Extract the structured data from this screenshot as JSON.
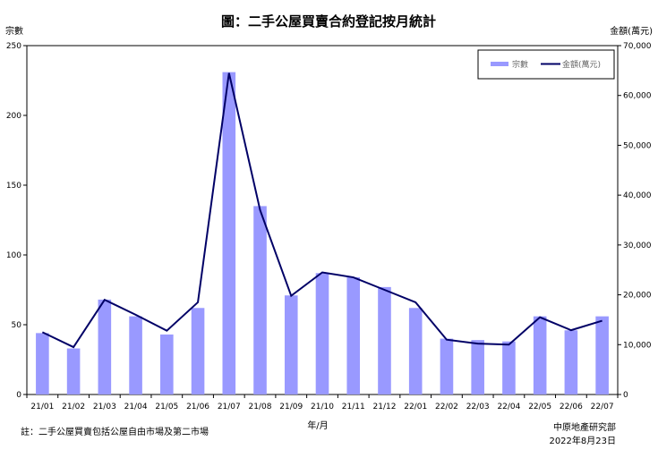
{
  "chart_data": {
    "type": "bar",
    "title": "圖：二手公屋買賣合約登記按月統計",
    "xlabel": "年/月",
    "ylabel": "宗數",
    "y2label": "金額(萬元)",
    "ylim": [
      0,
      250
    ],
    "y2lim": [
      0,
      70000
    ],
    "yticks": [
      "0",
      "50",
      "100",
      "150",
      "200",
      "250"
    ],
    "y2ticks": [
      "0",
      "10,000",
      "20,000",
      "30,000",
      "40,000",
      "50,000",
      "60,000",
      "70,000"
    ],
    "grid": false,
    "legend_position": "top-right",
    "categories": [
      "21/01",
      "21/02",
      "21/03",
      "21/04",
      "21/05",
      "21/06",
      "21/07",
      "21/08",
      "21/09",
      "21/10",
      "21/11",
      "21/12",
      "22/01",
      "22/02",
      "22/03",
      "22/04",
      "22/05",
      "22/06",
      "22/07"
    ],
    "series": [
      {
        "name": "宗數",
        "type": "bar",
        "axis": "left",
        "color": "#9999ff",
        "values": [
          44,
          33,
          68,
          56,
          43,
          62,
          231,
          135,
          71,
          87,
          84,
          77,
          62,
          40,
          39,
          38,
          56,
          46,
          56
        ]
      },
      {
        "name": "金額(萬元)",
        "type": "line",
        "axis": "right",
        "color": "#000066",
        "values": [
          12500,
          9500,
          19000,
          16000,
          12800,
          18500,
          64500,
          37000,
          19800,
          24500,
          23500,
          21000,
          18500,
          11000,
          10200,
          10000,
          15500,
          12900,
          14800
        ]
      }
    ]
  },
  "footnote": "註：二手公屋買賣包括公屋自由市場及第二市場",
  "source": "中原地產研究部",
  "date": "2022年8月23日",
  "colors": {
    "bar": "#9999ff",
    "line": "#000066",
    "axis": "#000000",
    "legend_border": "#000000"
  }
}
